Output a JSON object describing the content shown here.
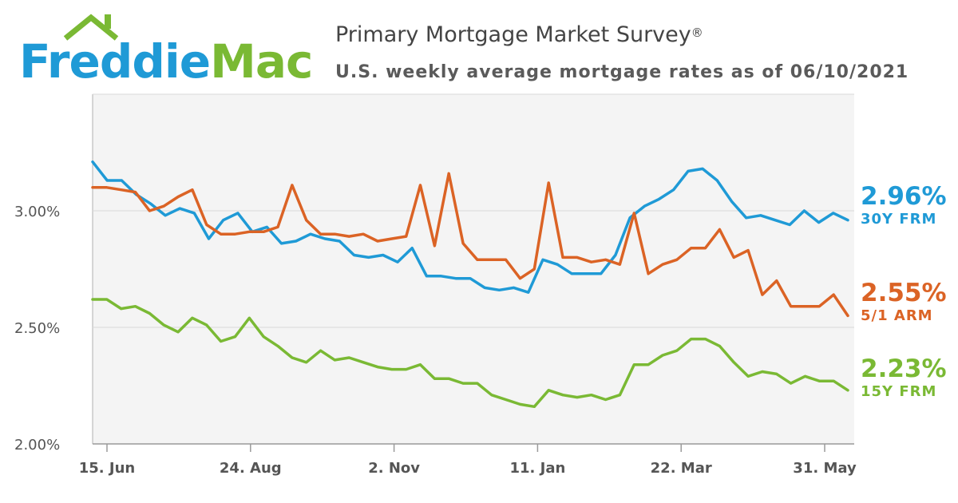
{
  "brand": {
    "name_part1": "Freddie",
    "name_part2": "Mac",
    "color_blue": "#1f9ad6",
    "color_green": "#7ab934"
  },
  "header": {
    "title": "Primary Mortgage Market Survey",
    "title_mark": "®",
    "subtitle": "U.S. weekly average mortgage rates as of 06/10/2021"
  },
  "chart_data": {
    "type": "line",
    "x_labels": [
      "15. Jun",
      "24. Aug",
      "2. Nov",
      "11. Jan",
      "22. Mar",
      "31. May"
    ],
    "y_ticks": [
      "2.00%",
      "2.50%",
      "3.00%"
    ],
    "ylim": [
      2.0,
      3.5
    ],
    "grid": true,
    "series": [
      {
        "name": "30Y FRM",
        "latest": "2.96%",
        "color": "#1f9ad6",
        "values": [
          3.21,
          3.13,
          3.13,
          3.07,
          3.03,
          2.98,
          3.01,
          2.99,
          2.88,
          2.96,
          2.99,
          2.91,
          2.93,
          2.86,
          2.87,
          2.9,
          2.88,
          2.87,
          2.81,
          2.8,
          2.81,
          2.78,
          2.84,
          2.72,
          2.72,
          2.71,
          2.71,
          2.67,
          2.66,
          2.67,
          2.65,
          2.79,
          2.77,
          2.73,
          2.73,
          2.73,
          2.81,
          2.97,
          3.02,
          3.05,
          3.09,
          3.17,
          3.18,
          3.13,
          3.04,
          2.97,
          2.98,
          2.96,
          2.94,
          3.0,
          2.95,
          2.99,
          2.96
        ]
      },
      {
        "name": "5/1 ARM",
        "latest": "2.55%",
        "color": "#db6325",
        "values": [
          3.1,
          3.1,
          3.09,
          3.08,
          3.0,
          3.02,
          3.06,
          3.09,
          2.94,
          2.9,
          2.9,
          2.91,
          2.91,
          2.93,
          3.11,
          2.96,
          2.9,
          2.9,
          2.89,
          2.9,
          2.87,
          2.88,
          2.89,
          3.11,
          2.85,
          3.16,
          2.86,
          2.79,
          2.79,
          2.79,
          2.71,
          2.75,
          3.12,
          2.8,
          2.8,
          2.78,
          2.79,
          2.77,
          2.99,
          2.73,
          2.77,
          2.79,
          2.84,
          2.84,
          2.92,
          2.8,
          2.83,
          2.64,
          2.7,
          2.59,
          2.59,
          2.59,
          2.64,
          2.55
        ]
      },
      {
        "name": "15Y FRM",
        "latest": "2.23%",
        "color": "#7ab934",
        "values": [
          2.62,
          2.62,
          2.58,
          2.59,
          2.56,
          2.51,
          2.48,
          2.54,
          2.51,
          2.44,
          2.46,
          2.54,
          2.46,
          2.42,
          2.37,
          2.35,
          2.4,
          2.36,
          2.37,
          2.35,
          2.33,
          2.32,
          2.32,
          2.34,
          2.28,
          2.28,
          2.26,
          2.26,
          2.21,
          2.19,
          2.17,
          2.16,
          2.23,
          2.21,
          2.2,
          2.21,
          2.19,
          2.21,
          2.34,
          2.34,
          2.38,
          2.4,
          2.45,
          2.45,
          2.42,
          2.35,
          2.29,
          2.31,
          2.3,
          2.26,
          2.29,
          2.27,
          2.27,
          2.23
        ]
      }
    ]
  }
}
